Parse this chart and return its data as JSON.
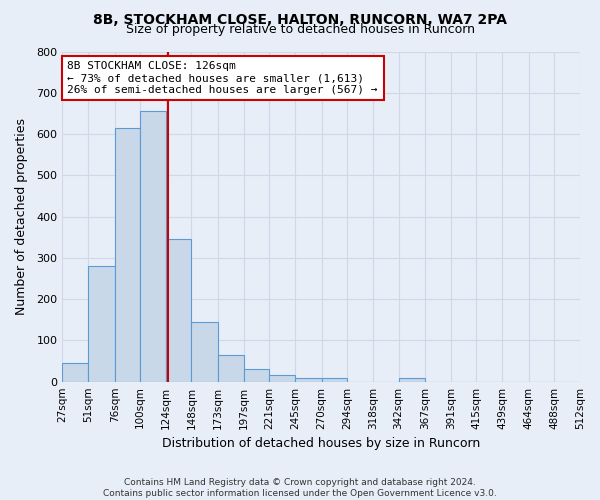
{
  "title_line1": "8B, STOCKHAM CLOSE, HALTON, RUNCORN, WA7 2PA",
  "title_line2": "Size of property relative to detached houses in Runcorn",
  "xlabel": "Distribution of detached houses by size in Runcorn",
  "ylabel": "Number of detached properties",
  "bin_edges": [
    27,
    51,
    76,
    100,
    124,
    148,
    173,
    197,
    221,
    245,
    270,
    294,
    318,
    342,
    367,
    391,
    415,
    439,
    464,
    488,
    512
  ],
  "bar_heights": [
    45,
    280,
    615,
    655,
    345,
    145,
    65,
    30,
    15,
    10,
    10,
    0,
    0,
    10,
    0,
    0,
    0,
    0,
    0,
    0
  ],
  "bar_color": "#c8d8e8",
  "bar_edge_color": "#5b9bd5",
  "bar_edge_width": 0.8,
  "red_line_x": 126,
  "red_line_color": "#cc0000",
  "annotation_text": "8B STOCKHAM CLOSE: 126sqm\n← 73% of detached houses are smaller (1,613)\n26% of semi-detached houses are larger (567) →",
  "annotation_box_color": "white",
  "annotation_box_edge_color": "#cc0000",
  "ylim": [
    0,
    800
  ],
  "yticks": [
    0,
    100,
    200,
    300,
    400,
    500,
    600,
    700,
    800
  ],
  "grid_color": "#d0d8e8",
  "background_color": "#e8eef8",
  "footer_text": "Contains HM Land Registry data © Crown copyright and database right 2024.\nContains public sector information licensed under the Open Government Licence v3.0.",
  "figsize": [
    6.0,
    5.0
  ],
  "dpi": 100
}
